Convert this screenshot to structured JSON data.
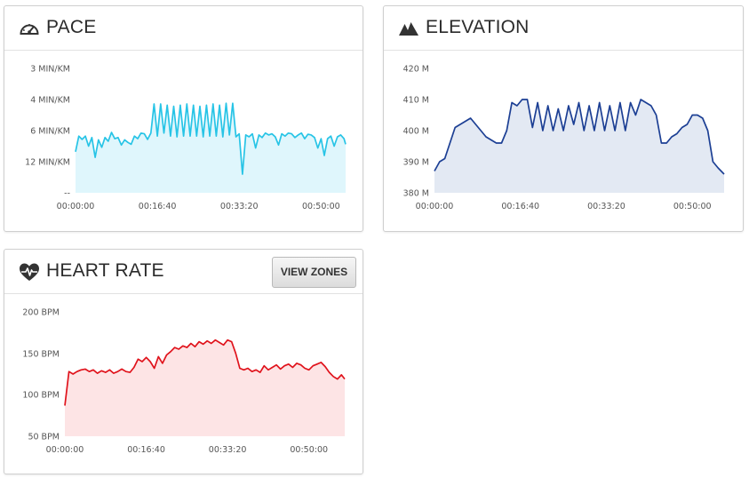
{
  "panels": {
    "pace": {
      "title": "PACE",
      "icon": "speedometer-icon"
    },
    "elevation": {
      "title": "ELEVATION",
      "icon": "mountain-icon"
    },
    "heart_rate": {
      "title": "HEART RATE",
      "icon": "heart-pulse-icon",
      "button_label": "VIEW ZONES"
    }
  },
  "colors": {
    "pace_line": "#27c4e6",
    "pace_fill": "#dff6fc",
    "elevation_line": "#1c3f94",
    "elevation_fill": "#e3e9f3",
    "heart_rate_line": "#e0131c",
    "heart_rate_fill": "#fde4e5"
  },
  "chart_data": [
    {
      "type": "area",
      "name": "pace",
      "x_ticks": [
        "00:00:00",
        "00:16:40",
        "00:33:20",
        "00:50:00"
      ],
      "x_tick_seconds": [
        0,
        1000,
        2000,
        3000
      ],
      "x_range_seconds": [
        0,
        3300
      ],
      "y_ticks": [
        "3 MIN/KM",
        "4 MIN/KM",
        "6 MIN/KM",
        "12 MIN/KM",
        "--"
      ],
      "y_scale": "reciprocal (speed)",
      "x": [
        0,
        40,
        80,
        120,
        160,
        200,
        240,
        280,
        320,
        360,
        400,
        440,
        480,
        520,
        560,
        600,
        640,
        680,
        720,
        760,
        800,
        840,
        880,
        920,
        960,
        1000,
        1040,
        1080,
        1120,
        1160,
        1200,
        1240,
        1280,
        1320,
        1360,
        1400,
        1440,
        1480,
        1520,
        1560,
        1600,
        1640,
        1680,
        1720,
        1760,
        1800,
        1840,
        1880,
        1920,
        1960,
        2000,
        2040,
        2080,
        2120,
        2160,
        2200,
        2240,
        2280,
        2320,
        2360,
        2400,
        2440,
        2480,
        2520,
        2560,
        2600,
        2640,
        2680,
        2720,
        2760,
        2800,
        2840,
        2880,
        2920,
        2960,
        3000,
        3040,
        3080,
        3120,
        3160,
        3200,
        3240,
        3280,
        3300
      ],
      "speed_km_per_min": [
        0.11,
        0.152,
        0.143,
        0.152,
        0.125,
        0.148,
        0.095,
        0.142,
        0.122,
        0.148,
        0.138,
        0.162,
        0.145,
        0.148,
        0.128,
        0.142,
        0.135,
        0.13,
        0.152,
        0.145,
        0.16,
        0.158,
        0.143,
        0.16,
        0.238,
        0.152,
        0.238,
        0.16,
        0.235,
        0.152,
        0.232,
        0.15,
        0.235,
        0.152,
        0.238,
        0.152,
        0.235,
        0.152,
        0.232,
        0.15,
        0.235,
        0.152,
        0.238,
        0.152,
        0.235,
        0.15,
        0.24,
        0.155,
        0.24,
        0.15,
        0.158,
        0.05,
        0.155,
        0.15,
        0.158,
        0.12,
        0.155,
        0.148,
        0.16,
        0.155,
        0.158,
        0.15,
        0.128,
        0.158,
        0.152,
        0.16,
        0.158,
        0.148,
        0.155,
        0.16,
        0.145,
        0.157,
        0.155,
        0.148,
        0.12,
        0.145,
        0.1,
        0.145,
        0.152,
        0.125,
        0.15,
        0.155,
        0.145,
        0.13
      ]
    },
    {
      "type": "area",
      "name": "elevation",
      "x_ticks": [
        "00:00:00",
        "00:16:40",
        "00:33:20",
        "00:50:00"
      ],
      "x_tick_seconds": [
        0,
        1000,
        2000,
        3000
      ],
      "x_range_seconds": [
        0,
        3370
      ],
      "y_ticks": [
        "420 M",
        "410 M",
        "400 M",
        "390 M",
        "380 M"
      ],
      "y_range": [
        380,
        420
      ],
      "x": [
        0,
        60,
        120,
        180,
        240,
        300,
        360,
        420,
        480,
        540,
        600,
        660,
        720,
        780,
        840,
        900,
        960,
        1020,
        1080,
        1140,
        1200,
        1260,
        1320,
        1380,
        1440,
        1500,
        1560,
        1620,
        1680,
        1740,
        1800,
        1860,
        1920,
        1980,
        2040,
        2100,
        2160,
        2220,
        2280,
        2340,
        2400,
        2460,
        2520,
        2580,
        2640,
        2700,
        2760,
        2820,
        2880,
        2940,
        3000,
        3060,
        3120,
        3180,
        3240,
        3300,
        3370
      ],
      "values": [
        387,
        390,
        391,
        396,
        401,
        402,
        403,
        404,
        402,
        400,
        398,
        397,
        396,
        396,
        400,
        409,
        408,
        410,
        410,
        401,
        409,
        400,
        408,
        400,
        407,
        400,
        408,
        402,
        409,
        400,
        408,
        400,
        409,
        400,
        408,
        400,
        409,
        400,
        409,
        405,
        410,
        409,
        408,
        405,
        396,
        396,
        398,
        399,
        401,
        402,
        405,
        405,
        404,
        400,
        390,
        388,
        386
      ]
    },
    {
      "type": "area",
      "name": "heart_rate",
      "x_ticks": [
        "00:00:00",
        "00:16:40",
        "00:33:20",
        "00:50:00"
      ],
      "x_tick_seconds": [
        0,
        1000,
        2000,
        3000
      ],
      "x_range_seconds": [
        0,
        3440
      ],
      "y_ticks": [
        "200 BPM",
        "150 BPM",
        "100 BPM",
        "50 BPM"
      ],
      "y_range": [
        50,
        200
      ],
      "x": [
        0,
        50,
        100,
        150,
        200,
        250,
        300,
        350,
        400,
        450,
        500,
        550,
        600,
        650,
        700,
        750,
        800,
        850,
        900,
        950,
        1000,
        1050,
        1100,
        1150,
        1200,
        1250,
        1300,
        1350,
        1400,
        1450,
        1500,
        1550,
        1600,
        1650,
        1700,
        1750,
        1800,
        1850,
        1900,
        1950,
        2000,
        2050,
        2100,
        2150,
        2200,
        2250,
        2300,
        2350,
        2400,
        2450,
        2500,
        2550,
        2600,
        2650,
        2700,
        2750,
        2800,
        2850,
        2900,
        2950,
        3000,
        3050,
        3100,
        3150,
        3200,
        3250,
        3300,
        3350,
        3400,
        3440
      ],
      "values": [
        87,
        128,
        125,
        128,
        130,
        131,
        128,
        130,
        126,
        129,
        127,
        130,
        126,
        128,
        131,
        128,
        127,
        133,
        143,
        140,
        145,
        140,
        132,
        146,
        138,
        148,
        152,
        157,
        155,
        159,
        157,
        162,
        158,
        164,
        161,
        165,
        162,
        166,
        163,
        160,
        166,
        164,
        150,
        132,
        130,
        132,
        128,
        130,
        127,
        135,
        130,
        133,
        136,
        131,
        135,
        137,
        133,
        138,
        136,
        132,
        130,
        135,
        137,
        139,
        134,
        127,
        122,
        119,
        124,
        119
      ]
    }
  ]
}
